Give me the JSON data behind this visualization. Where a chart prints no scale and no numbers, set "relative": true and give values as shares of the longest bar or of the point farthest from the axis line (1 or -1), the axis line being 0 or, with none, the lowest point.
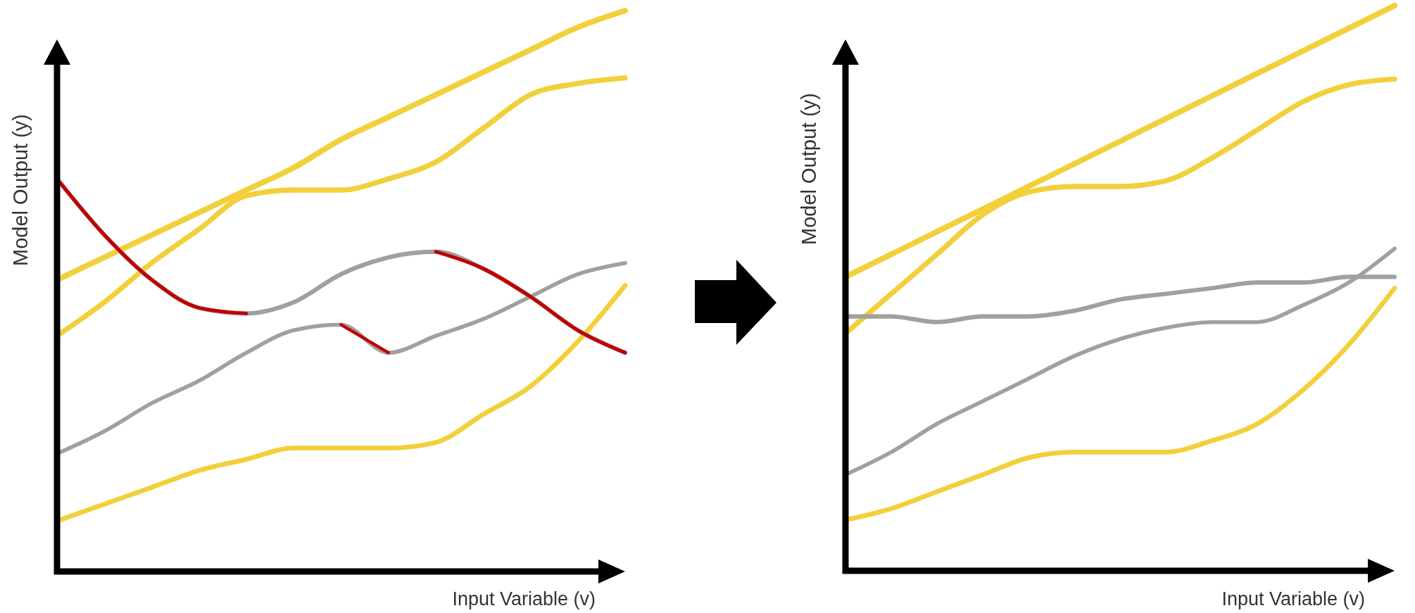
{
  "chart_data": [
    {
      "type": "line",
      "relative": true,
      "xlabel": "Input Variable (v)",
      "ylabel": "Model Output (y)",
      "categories": [
        null,
        null,
        null,
        null,
        null,
        null,
        null,
        null,
        null,
        null,
        null,
        null,
        null
      ],
      "series": [
        {
          "color": "#f2d03b",
          "values": [
            0.52,
            0.56,
            0.6,
            0.64,
            0.68,
            0.72,
            0.77,
            0.81,
            0.85,
            0.89,
            0.93,
            0.97,
            1.0
          ]
        },
        {
          "color": "#f2d03b",
          "values": [
            0.42,
            0.48,
            0.55,
            0.61,
            0.67,
            0.68,
            0.68,
            0.7,
            0.73,
            0.79,
            0.85,
            0.87,
            0.88
          ]
        },
        {
          "color": "#f2d03b",
          "values": [
            0.09,
            0.12,
            0.15,
            0.18,
            0.2,
            0.22,
            0.22,
            0.22,
            0.23,
            0.28,
            0.33,
            0.41,
            0.51
          ]
        },
        {
          "color": "#a0a0a0",
          "values": [
            0.7,
            0.6,
            0.52,
            0.47,
            0.46,
            0.48,
            0.53,
            0.56,
            0.57,
            0.54,
            0.49,
            0.43,
            0.39
          ]
        },
        {
          "color": "#a0a0a0",
          "values": [
            0.21,
            0.25,
            0.3,
            0.34,
            0.39,
            0.43,
            0.44,
            0.39,
            0.42,
            0.45,
            0.49,
            0.53,
            0.55
          ]
        },
        {
          "color": "#c00000",
          "values": [
            0.7,
            0.6,
            0.52,
            0.47,
            0.46,
            null,
            null,
            null,
            0.57,
            0.54,
            0.49,
            0.43,
            0.39
          ]
        },
        {
          "color": "#c00000",
          "values": [
            null,
            null,
            null,
            null,
            null,
            null,
            0.44,
            0.39,
            null,
            null,
            null,
            null,
            null
          ]
        }
      ]
    },
    {
      "type": "line",
      "relative": true,
      "xlabel": "Input Variable (v)",
      "ylabel": "Model Output (y)",
      "categories": [
        null,
        null,
        null,
        null,
        null,
        null,
        null,
        null,
        null,
        null,
        null,
        null,
        null
      ],
      "series": [
        {
          "color": "#f2d03b",
          "values": [
            0.52,
            0.56,
            0.6,
            0.64,
            0.68,
            0.72,
            0.76,
            0.8,
            0.84,
            0.88,
            0.92,
            0.96,
            1.0
          ]
        },
        {
          "color": "#f2d03b",
          "values": [
            0.42,
            0.49,
            0.56,
            0.63,
            0.67,
            0.68,
            0.68,
            0.69,
            0.73,
            0.78,
            0.83,
            0.86,
            0.87
          ]
        },
        {
          "color": "#f2d03b",
          "values": [
            0.09,
            0.11,
            0.14,
            0.17,
            0.2,
            0.21,
            0.21,
            0.21,
            0.23,
            0.26,
            0.32,
            0.4,
            0.5
          ]
        },
        {
          "color": "#a0a0a0",
          "values": [
            0.45,
            0.45,
            0.44,
            0.45,
            0.45,
            0.46,
            0.48,
            0.49,
            0.5,
            0.51,
            0.51,
            0.52,
            0.52
          ]
        },
        {
          "color": "#a0a0a0",
          "values": [
            0.17,
            0.21,
            0.26,
            0.3,
            0.34,
            0.38,
            0.41,
            0.43,
            0.44,
            0.44,
            0.47,
            0.51,
            0.57
          ]
        }
      ]
    }
  ]
}
